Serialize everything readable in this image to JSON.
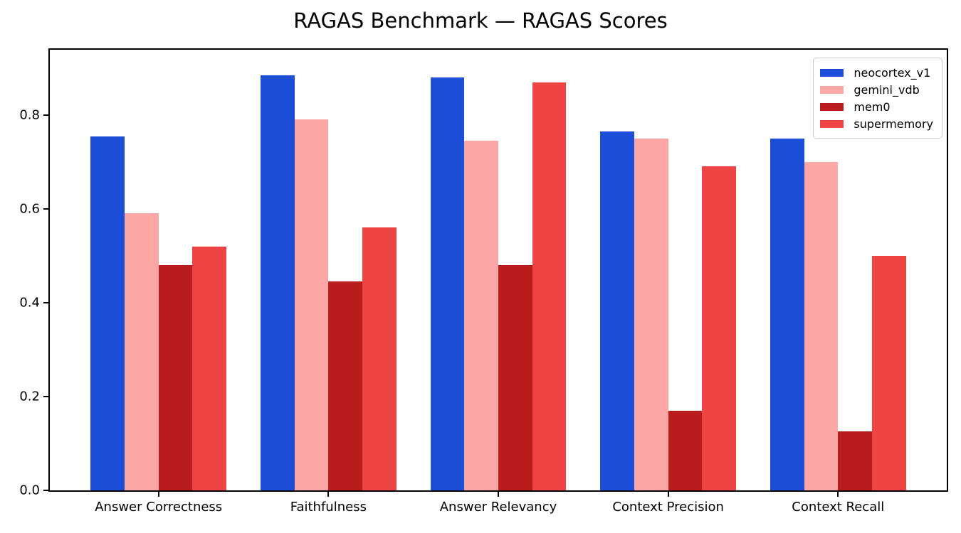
{
  "chart_data": {
    "type": "bar",
    "title": "RAGAS Benchmark — RAGAS Scores",
    "categories": [
      "Answer Correctness",
      "Faithfulness",
      "Answer Relevancy",
      "Context Precision",
      "Context Recall"
    ],
    "series": [
      {
        "name": "neocortex_v1",
        "color": "#1d4ed8",
        "values": [
          0.755,
          0.885,
          0.88,
          0.765,
          0.75
        ]
      },
      {
        "name": "gemini_vdb",
        "color": "#fca5a5",
        "values": [
          0.59,
          0.79,
          0.745,
          0.75,
          0.7
        ]
      },
      {
        "name": "mem0",
        "color": "#b91c1c",
        "values": [
          0.48,
          0.445,
          0.48,
          0.17,
          0.125
        ]
      },
      {
        "name": "supermemory",
        "color": "#ef4444",
        "values": [
          0.52,
          0.56,
          0.87,
          0.69,
          0.5
        ]
      }
    ],
    "ytick_values": [
      0.0,
      0.2,
      0.4,
      0.6,
      0.8
    ],
    "ytick_labels": [
      "0.0",
      "0.2",
      "0.4",
      "0.6",
      "0.8"
    ],
    "ylim": [
      0,
      0.939
    ],
    "xlim": [
      -0.64,
      4.64
    ],
    "bar_width_units": 0.2,
    "grid": false,
    "legend_position": "upper right",
    "axis_color": "#000000",
    "background_color": "#ffffff"
  }
}
